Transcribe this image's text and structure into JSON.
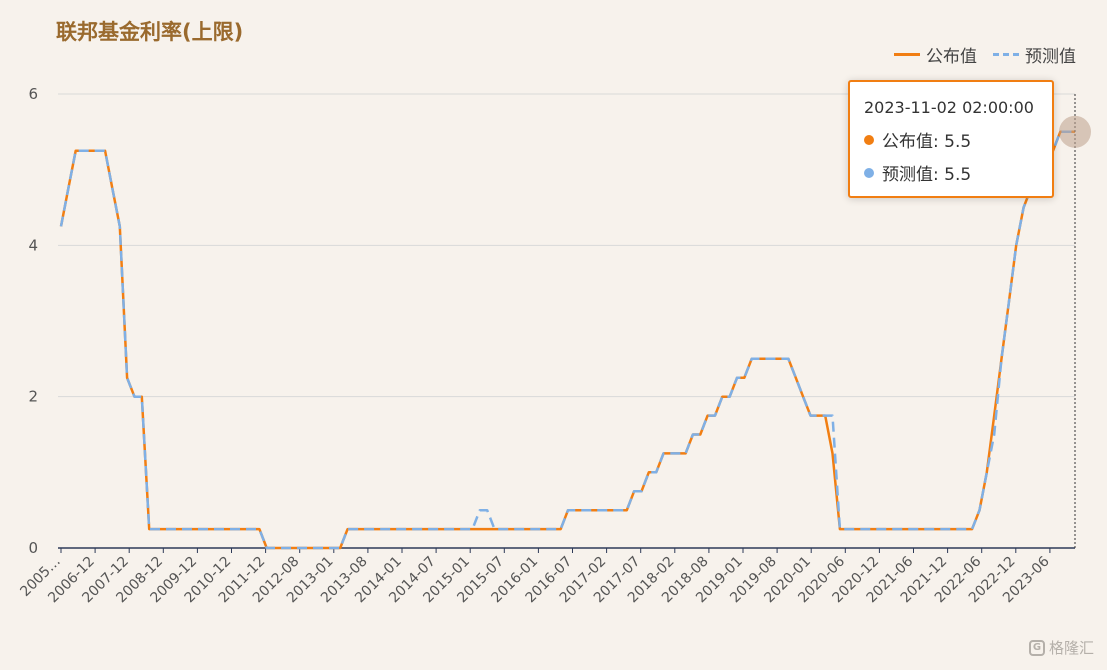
{
  "title": "联邦基金利率(上限)",
  "legend": {
    "published": "公布值",
    "forecast": "预测值"
  },
  "colors": {
    "published": "#f17e12",
    "forecast": "#7fb0e6",
    "grid": "#d9d9d9",
    "axis": "#2e3a58",
    "title": "#9a6a2e"
  },
  "tooltip": {
    "time": "2023-11-02 02:00:00",
    "published_label": "公布值: 5.5",
    "forecast_label": "预测值: 5.5"
  },
  "watermark": "格隆汇",
  "chart_data": {
    "type": "line",
    "ylim": [
      0,
      6
    ],
    "y_ticks": [
      "0",
      "2",
      "4",
      "6"
    ],
    "x_tick_labels": [
      "2005…",
      "2006-12",
      "2007-12",
      "2008-12",
      "2009-12",
      "2010-12",
      "2011-12",
      "2012-08",
      "2013-01",
      "2013-08",
      "2014-01",
      "2014-07",
      "2015-01",
      "2015-07",
      "2016-01",
      "2016-07",
      "2017-02",
      "2017-07",
      "2018-02",
      "2018-08",
      "2019-01",
      "2019-08",
      "2020-01",
      "2020-06",
      "2020-12",
      "2021-06",
      "2021-12",
      "2022-06",
      "2022-12",
      "2023-06"
    ],
    "series": [
      {
        "name": "公布值",
        "values": [
          4.25,
          4.75,
          5.25,
          5.25,
          5.25,
          5.25,
          5.25,
          4.75,
          4.25,
          2.25,
          2.0,
          2.0,
          0.25,
          0.25,
          0.25,
          0.25,
          0.25,
          0.25,
          0.25,
          0.25,
          0.25,
          0.25,
          0.25,
          0.25,
          0.25,
          0.25,
          0.25,
          0.25,
          0.0,
          0.0,
          0.0,
          0.0,
          0.0,
          0.0,
          0.0,
          0.0,
          0.0,
          0.0,
          0.0,
          0.25,
          0.25,
          0.25,
          0.25,
          0.25,
          0.25,
          0.25,
          0.25,
          0.25,
          0.25,
          0.25,
          0.25,
          0.25,
          0.25,
          0.25,
          0.25,
          0.25,
          0.25,
          0.25,
          0.25,
          0.25,
          0.25,
          0.25,
          0.25,
          0.25,
          0.25,
          0.25,
          0.25,
          0.25,
          0.25,
          0.5,
          0.5,
          0.5,
          0.5,
          0.5,
          0.5,
          0.5,
          0.5,
          0.5,
          0.75,
          0.75,
          1.0,
          1.0,
          1.25,
          1.25,
          1.25,
          1.25,
          1.5,
          1.5,
          1.75,
          1.75,
          2.0,
          2.0,
          2.25,
          2.25,
          2.5,
          2.5,
          2.5,
          2.5,
          2.5,
          2.5,
          2.25,
          2.0,
          1.75,
          1.75,
          1.75,
          1.25,
          0.25,
          0.25,
          0.25,
          0.25,
          0.25,
          0.25,
          0.25,
          0.25,
          0.25,
          0.25,
          0.25,
          0.25,
          0.25,
          0.25,
          0.25,
          0.25,
          0.25,
          0.25,
          0.25,
          0.5,
          1.0,
          1.75,
          2.5,
          3.25,
          4.0,
          4.5,
          4.75,
          5.0,
          5.25,
          5.25,
          5.5,
          5.5,
          5.5
        ]
      },
      {
        "name": "预测值",
        "values": [
          4.25,
          4.75,
          5.25,
          5.25,
          5.25,
          5.25,
          5.25,
          4.75,
          4.25,
          2.25,
          2.0,
          2.0,
          0.25,
          0.25,
          0.25,
          0.25,
          0.25,
          0.25,
          0.25,
          0.25,
          0.25,
          0.25,
          0.25,
          0.25,
          0.25,
          0.25,
          0.25,
          0.25,
          0.0,
          0.0,
          0.0,
          0.0,
          0.0,
          0.0,
          0.0,
          0.0,
          0.0,
          0.0,
          0.0,
          0.25,
          0.25,
          0.25,
          0.25,
          0.25,
          0.25,
          0.25,
          0.25,
          0.25,
          0.25,
          0.25,
          0.25,
          0.25,
          0.25,
          0.25,
          0.25,
          0.25,
          0.25,
          0.5,
          0.5,
          0.25,
          0.25,
          0.25,
          0.25,
          0.25,
          0.25,
          0.25,
          0.25,
          0.25,
          0.25,
          0.5,
          0.5,
          0.5,
          0.5,
          0.5,
          0.5,
          0.5,
          0.5,
          0.5,
          0.75,
          0.75,
          1.0,
          1.0,
          1.25,
          1.25,
          1.25,
          1.25,
          1.5,
          1.5,
          1.75,
          1.75,
          2.0,
          2.0,
          2.25,
          2.25,
          2.5,
          2.5,
          2.5,
          2.5,
          2.5,
          2.5,
          2.25,
          2.0,
          1.75,
          1.75,
          1.75,
          1.75,
          0.25,
          0.25,
          0.25,
          0.25,
          0.25,
          0.25,
          0.25,
          0.25,
          0.25,
          0.25,
          0.25,
          0.25,
          0.25,
          0.25,
          0.25,
          0.25,
          0.25,
          0.25,
          0.25,
          0.5,
          1.0,
          1.5,
          2.5,
          3.25,
          4.0,
          4.5,
          4.75,
          5.0,
          5.25,
          5.25,
          5.5,
          5.5,
          5.5
        ]
      }
    ],
    "highlight_point": {
      "value": 5.5
    }
  }
}
